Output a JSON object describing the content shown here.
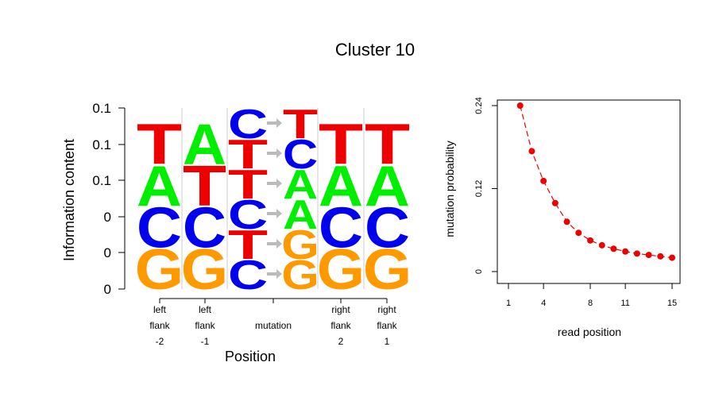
{
  "title": "Cluster 10",
  "colors": {
    "A": "#00ee00",
    "C": "#0000ee",
    "G": "#ff9900",
    "T": "#ee0000",
    "arrow": "#bbbbbb",
    "separator": "#cccccc",
    "mutation_point": "#ee0000"
  },
  "chart_data": [
    {
      "type": "sequence-logo",
      "ylabel": "Information content",
      "xlabel": "Position",
      "y_tick_labels": [
        "0",
        "0",
        "0",
        "0.1",
        "0.1",
        "0.1"
      ],
      "positions": [
        {
          "label_lines": [
            "left",
            "flank",
            "-2"
          ],
          "stack_bottom_to_top": [
            "G",
            "C",
            "A",
            "T"
          ]
        },
        {
          "label_lines": [
            "left",
            "flank",
            "-1"
          ],
          "stack_bottom_to_top": [
            "G",
            "C",
            "T",
            "A"
          ]
        },
        {
          "label_lines": [
            "mutation"
          ],
          "ref_bottom_to_top": [
            "C",
            "T",
            "C",
            "T",
            "T",
            "C"
          ],
          "alt_bottom_to_top": [
            "G",
            "G",
            "A",
            "A",
            "C",
            "T"
          ]
        },
        {
          "label_lines": [
            "right",
            "flank",
            "2"
          ],
          "stack_bottom_to_top": [
            "G",
            "C",
            "A",
            "T"
          ]
        },
        {
          "label_lines": [
            "right",
            "flank",
            "1"
          ],
          "stack_bottom_to_top": [
            "G",
            "C",
            "A",
            "T"
          ]
        }
      ]
    },
    {
      "type": "line",
      "xlabel": "read position",
      "ylabel": "mutation probability",
      "x_ticks": [
        1,
        4,
        8,
        11,
        15
      ],
      "y_ticks": [
        0,
        0.12,
        0.24
      ],
      "xlim": [
        0.5,
        15.5
      ],
      "ylim": [
        -0.002,
        0.245
      ],
      "x": [
        2,
        3,
        4,
        5,
        6,
        7,
        8,
        9,
        10,
        11,
        12,
        13,
        14,
        15
      ],
      "y": [
        0.24,
        0.174,
        0.131,
        0.099,
        0.072,
        0.056,
        0.045,
        0.038,
        0.033,
        0.029,
        0.026,
        0.024,
        0.022,
        0.02
      ]
    }
  ]
}
